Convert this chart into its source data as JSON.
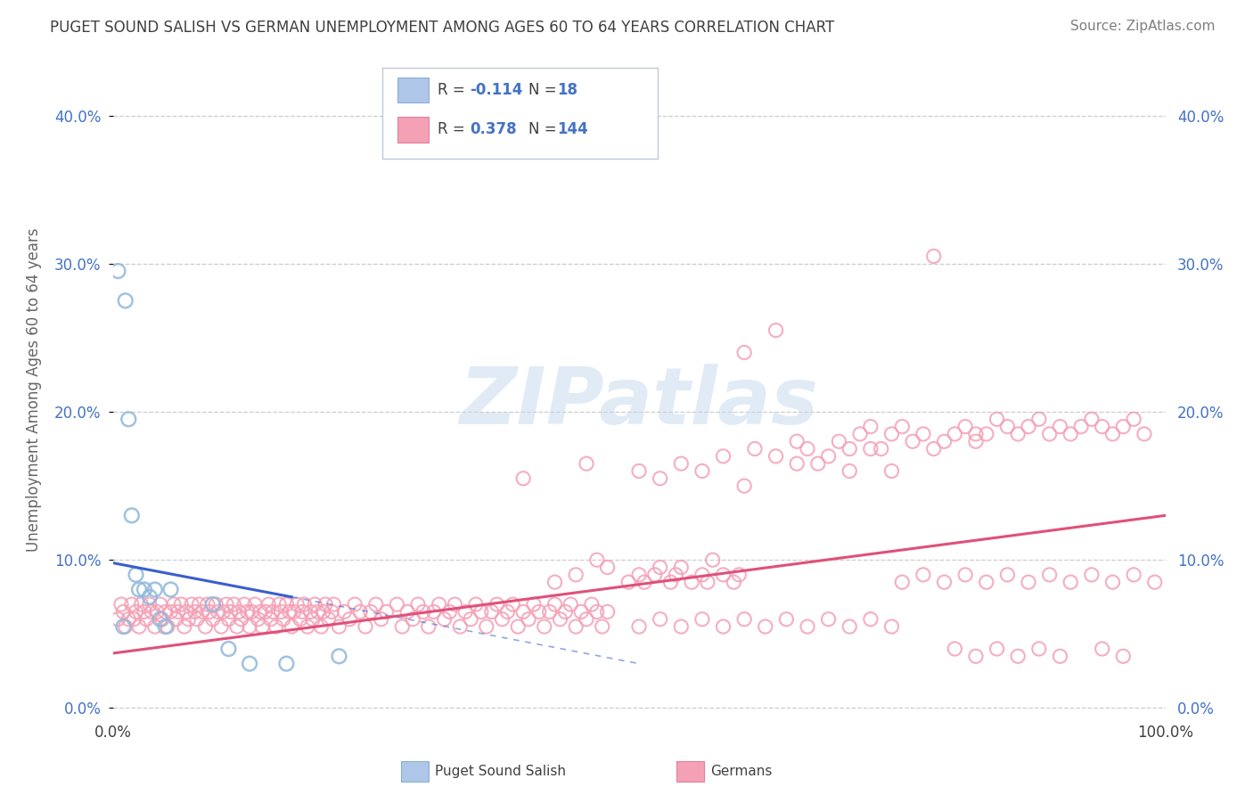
{
  "title": "PUGET SOUND SALISH VS GERMAN UNEMPLOYMENT AMONG AGES 60 TO 64 YEARS CORRELATION CHART",
  "source": "Source: ZipAtlas.com",
  "ylabel": "Unemployment Among Ages 60 to 64 years",
  "xlim": [
    0.0,
    1.0
  ],
  "ylim": [
    -0.005,
    0.435
  ],
  "yticks": [
    0.0,
    0.1,
    0.2,
    0.3,
    0.4
  ],
  "ytick_labels": [
    "0.0%",
    "10.0%",
    "20.0%",
    "30.0%",
    "40.0%"
  ],
  "blue_scatter": [
    [
      0.005,
      0.295
    ],
    [
      0.01,
      0.055
    ],
    [
      0.012,
      0.275
    ],
    [
      0.015,
      0.195
    ],
    [
      0.018,
      0.13
    ],
    [
      0.022,
      0.09
    ],
    [
      0.025,
      0.08
    ],
    [
      0.03,
      0.08
    ],
    [
      0.035,
      0.075
    ],
    [
      0.04,
      0.08
    ],
    [
      0.045,
      0.06
    ],
    [
      0.05,
      0.055
    ],
    [
      0.055,
      0.08
    ],
    [
      0.095,
      0.07
    ],
    [
      0.11,
      0.04
    ],
    [
      0.13,
      0.03
    ],
    [
      0.165,
      0.03
    ],
    [
      0.215,
      0.035
    ]
  ],
  "pink_scatter": [
    [
      0.005,
      0.06
    ],
    [
      0.008,
      0.07
    ],
    [
      0.01,
      0.065
    ],
    [
      0.012,
      0.055
    ],
    [
      0.015,
      0.06
    ],
    [
      0.018,
      0.07
    ],
    [
      0.02,
      0.06
    ],
    [
      0.022,
      0.065
    ],
    [
      0.025,
      0.055
    ],
    [
      0.027,
      0.07
    ],
    [
      0.03,
      0.065
    ],
    [
      0.032,
      0.06
    ],
    [
      0.035,
      0.07
    ],
    [
      0.037,
      0.065
    ],
    [
      0.04,
      0.055
    ],
    [
      0.042,
      0.065
    ],
    [
      0.045,
      0.07
    ],
    [
      0.047,
      0.06
    ],
    [
      0.05,
      0.065
    ],
    [
      0.052,
      0.055
    ],
    [
      0.055,
      0.065
    ],
    [
      0.058,
      0.07
    ],
    [
      0.06,
      0.06
    ],
    [
      0.062,
      0.065
    ],
    [
      0.065,
      0.07
    ],
    [
      0.068,
      0.055
    ],
    [
      0.07,
      0.065
    ],
    [
      0.072,
      0.06
    ],
    [
      0.075,
      0.07
    ],
    [
      0.078,
      0.065
    ],
    [
      0.08,
      0.06
    ],
    [
      0.082,
      0.07
    ],
    [
      0.085,
      0.065
    ],
    [
      0.088,
      0.055
    ],
    [
      0.09,
      0.07
    ],
    [
      0.092,
      0.065
    ],
    [
      0.095,
      0.06
    ],
    [
      0.098,
      0.07
    ],
    [
      0.1,
      0.065
    ],
    [
      0.103,
      0.055
    ],
    [
      0.105,
      0.065
    ],
    [
      0.108,
      0.07
    ],
    [
      0.11,
      0.06
    ],
    [
      0.112,
      0.065
    ],
    [
      0.115,
      0.07
    ],
    [
      0.118,
      0.055
    ],
    [
      0.12,
      0.065
    ],
    [
      0.122,
      0.06
    ],
    [
      0.125,
      0.07
    ],
    [
      0.128,
      0.065
    ],
    [
      0.13,
      0.055
    ],
    [
      0.132,
      0.065
    ],
    [
      0.135,
      0.07
    ],
    [
      0.138,
      0.06
    ],
    [
      0.14,
      0.065
    ],
    [
      0.142,
      0.055
    ],
    [
      0.145,
      0.065
    ],
    [
      0.148,
      0.07
    ],
    [
      0.15,
      0.06
    ],
    [
      0.152,
      0.065
    ],
    [
      0.155,
      0.055
    ],
    [
      0.158,
      0.07
    ],
    [
      0.16,
      0.065
    ],
    [
      0.162,
      0.06
    ],
    [
      0.165,
      0.07
    ],
    [
      0.168,
      0.065
    ],
    [
      0.17,
      0.055
    ],
    [
      0.172,
      0.065
    ],
    [
      0.175,
      0.07
    ],
    [
      0.178,
      0.06
    ],
    [
      0.18,
      0.065
    ],
    [
      0.182,
      0.07
    ],
    [
      0.185,
      0.055
    ],
    [
      0.188,
      0.065
    ],
    [
      0.19,
      0.06
    ],
    [
      0.192,
      0.07
    ],
    [
      0.195,
      0.065
    ],
    [
      0.198,
      0.055
    ],
    [
      0.2,
      0.065
    ],
    [
      0.202,
      0.07
    ],
    [
      0.205,
      0.06
    ],
    [
      0.208,
      0.065
    ],
    [
      0.21,
      0.07
    ],
    [
      0.215,
      0.055
    ],
    [
      0.22,
      0.065
    ],
    [
      0.225,
      0.06
    ],
    [
      0.23,
      0.07
    ],
    [
      0.235,
      0.065
    ],
    [
      0.24,
      0.055
    ],
    [
      0.245,
      0.065
    ],
    [
      0.25,
      0.07
    ],
    [
      0.255,
      0.06
    ],
    [
      0.26,
      0.065
    ],
    [
      0.27,
      0.07
    ],
    [
      0.275,
      0.055
    ],
    [
      0.28,
      0.065
    ],
    [
      0.285,
      0.06
    ],
    [
      0.29,
      0.07
    ],
    [
      0.295,
      0.065
    ],
    [
      0.3,
      0.055
    ],
    [
      0.305,
      0.065
    ],
    [
      0.31,
      0.07
    ],
    [
      0.315,
      0.06
    ],
    [
      0.32,
      0.065
    ],
    [
      0.325,
      0.07
    ],
    [
      0.33,
      0.055
    ],
    [
      0.335,
      0.065
    ],
    [
      0.34,
      0.06
    ],
    [
      0.345,
      0.07
    ],
    [
      0.35,
      0.065
    ],
    [
      0.355,
      0.055
    ],
    [
      0.36,
      0.065
    ],
    [
      0.365,
      0.07
    ],
    [
      0.37,
      0.06
    ],
    [
      0.375,
      0.065
    ],
    [
      0.38,
      0.07
    ],
    [
      0.385,
      0.055
    ],
    [
      0.39,
      0.065
    ],
    [
      0.395,
      0.06
    ],
    [
      0.4,
      0.07
    ],
    [
      0.405,
      0.065
    ],
    [
      0.41,
      0.055
    ],
    [
      0.415,
      0.065
    ],
    [
      0.42,
      0.07
    ],
    [
      0.425,
      0.06
    ],
    [
      0.43,
      0.065
    ],
    [
      0.435,
      0.07
    ],
    [
      0.44,
      0.055
    ],
    [
      0.445,
      0.065
    ],
    [
      0.45,
      0.06
    ],
    [
      0.455,
      0.07
    ],
    [
      0.46,
      0.065
    ],
    [
      0.465,
      0.055
    ],
    [
      0.47,
      0.065
    ],
    [
      0.39,
      0.155
    ],
    [
      0.42,
      0.085
    ],
    [
      0.44,
      0.09
    ],
    [
      0.46,
      0.1
    ],
    [
      0.47,
      0.095
    ],
    [
      0.49,
      0.085
    ],
    [
      0.5,
      0.09
    ],
    [
      0.505,
      0.085
    ],
    [
      0.515,
      0.09
    ],
    [
      0.52,
      0.095
    ],
    [
      0.53,
      0.085
    ],
    [
      0.535,
      0.09
    ],
    [
      0.54,
      0.095
    ],
    [
      0.55,
      0.085
    ],
    [
      0.56,
      0.09
    ],
    [
      0.565,
      0.085
    ],
    [
      0.57,
      0.1
    ],
    [
      0.58,
      0.09
    ],
    [
      0.59,
      0.085
    ],
    [
      0.595,
      0.09
    ],
    [
      0.45,
      0.165
    ],
    [
      0.5,
      0.16
    ],
    [
      0.52,
      0.155
    ],
    [
      0.54,
      0.165
    ],
    [
      0.56,
      0.16
    ],
    [
      0.58,
      0.17
    ],
    [
      0.6,
      0.15
    ],
    [
      0.61,
      0.175
    ],
    [
      0.63,
      0.17
    ],
    [
      0.65,
      0.18
    ],
    [
      0.66,
      0.175
    ],
    [
      0.67,
      0.165
    ],
    [
      0.69,
      0.18
    ],
    [
      0.7,
      0.175
    ],
    [
      0.71,
      0.185
    ],
    [
      0.72,
      0.19
    ],
    [
      0.73,
      0.175
    ],
    [
      0.74,
      0.185
    ],
    [
      0.75,
      0.19
    ],
    [
      0.76,
      0.18
    ],
    [
      0.77,
      0.185
    ],
    [
      0.78,
      0.175
    ],
    [
      0.79,
      0.18
    ],
    [
      0.8,
      0.185
    ],
    [
      0.81,
      0.19
    ],
    [
      0.82,
      0.18
    ],
    [
      0.83,
      0.185
    ],
    [
      0.84,
      0.195
    ],
    [
      0.85,
      0.19
    ],
    [
      0.86,
      0.185
    ],
    [
      0.87,
      0.19
    ],
    [
      0.88,
      0.195
    ],
    [
      0.89,
      0.185
    ],
    [
      0.9,
      0.19
    ],
    [
      0.91,
      0.185
    ],
    [
      0.92,
      0.19
    ],
    [
      0.93,
      0.195
    ],
    [
      0.94,
      0.19
    ],
    [
      0.95,
      0.185
    ],
    [
      0.96,
      0.19
    ],
    [
      0.97,
      0.195
    ],
    [
      0.98,
      0.185
    ],
    [
      0.6,
      0.24
    ],
    [
      0.63,
      0.255
    ],
    [
      0.65,
      0.165
    ],
    [
      0.68,
      0.17
    ],
    [
      0.7,
      0.16
    ],
    [
      0.72,
      0.175
    ],
    [
      0.74,
      0.16
    ],
    [
      0.75,
      0.085
    ],
    [
      0.77,
      0.09
    ],
    [
      0.79,
      0.085
    ],
    [
      0.81,
      0.09
    ],
    [
      0.83,
      0.085
    ],
    [
      0.85,
      0.09
    ],
    [
      0.87,
      0.085
    ],
    [
      0.89,
      0.09
    ],
    [
      0.91,
      0.085
    ],
    [
      0.93,
      0.09
    ],
    [
      0.95,
      0.085
    ],
    [
      0.97,
      0.09
    ],
    [
      0.99,
      0.085
    ],
    [
      0.8,
      0.04
    ],
    [
      0.82,
      0.035
    ],
    [
      0.84,
      0.04
    ],
    [
      0.86,
      0.035
    ],
    [
      0.88,
      0.04
    ],
    [
      0.9,
      0.035
    ],
    [
      0.78,
      0.305
    ],
    [
      0.82,
      0.185
    ],
    [
      0.94,
      0.04
    ],
    [
      0.96,
      0.035
    ],
    [
      0.5,
      0.055
    ],
    [
      0.52,
      0.06
    ],
    [
      0.54,
      0.055
    ],
    [
      0.56,
      0.06
    ],
    [
      0.58,
      0.055
    ],
    [
      0.6,
      0.06
    ],
    [
      0.62,
      0.055
    ],
    [
      0.64,
      0.06
    ],
    [
      0.66,
      0.055
    ],
    [
      0.68,
      0.06
    ],
    [
      0.7,
      0.055
    ],
    [
      0.72,
      0.06
    ],
    [
      0.74,
      0.055
    ]
  ],
  "blue_line": [
    [
      0.0,
      0.098
    ],
    [
      0.17,
      0.075
    ]
  ],
  "blue_dash_line": [
    [
      0.17,
      0.075
    ],
    [
      0.5,
      0.03
    ]
  ],
  "pink_line": [
    [
      0.0,
      0.037
    ],
    [
      1.0,
      0.13
    ]
  ],
  "watermark_text": "ZIPatlas",
  "background_color": "#ffffff",
  "grid_color": "#cccccc",
  "blue_dot_color": "#90b8dc",
  "blue_line_color": "#3a5fcd",
  "pink_dot_color": "#f4a0b5",
  "pink_line_color": "#e0507a",
  "text_blue": "#4472c4",
  "text_dark": "#404040",
  "source_color": "#808080"
}
